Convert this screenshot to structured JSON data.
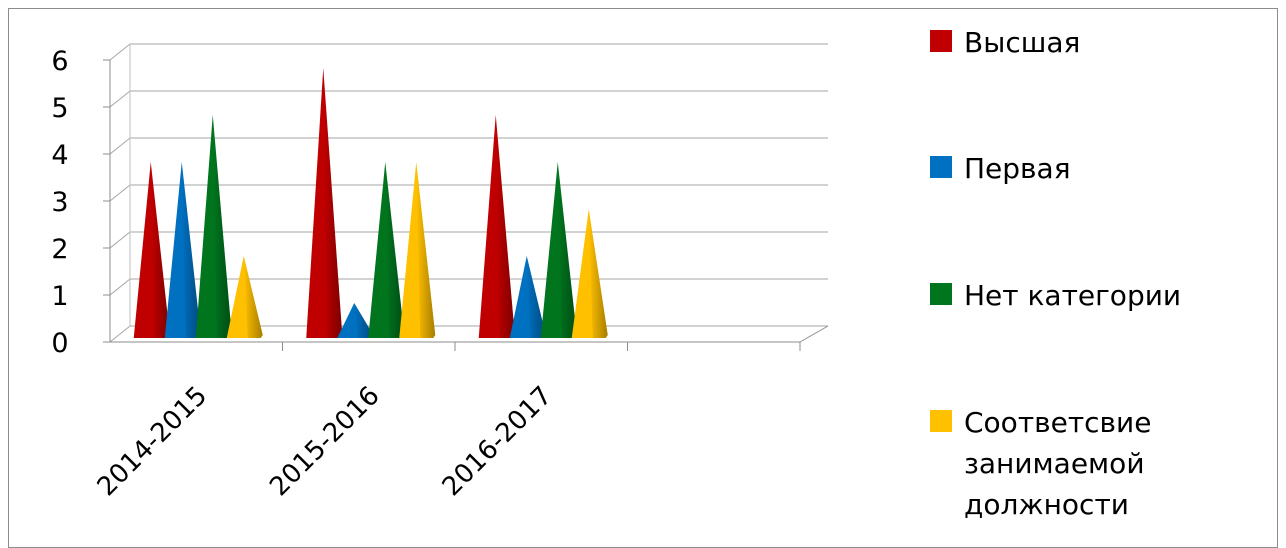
{
  "chart_data": {
    "type": "bar",
    "style": "3d-cone",
    "categories": [
      "2014-2015",
      "2015-2016",
      "2016-2017"
    ],
    "series": [
      {
        "name": "Высшая",
        "values": [
          4,
          6,
          5
        ],
        "color": "#c00000"
      },
      {
        "name": "Первая",
        "values": [
          4,
          1,
          2
        ],
        "color": "#0070c0"
      },
      {
        "name": "Нет категории",
        "values": [
          5,
          4,
          4
        ],
        "color": "#00751e"
      },
      {
        "name": "Соответсвие занимаемой должности",
        "values": [
          2,
          4,
          3
        ],
        "color": "#ffc000"
      }
    ],
    "yticks": [
      "0",
      "1",
      "2",
      "3",
      "4",
      "5",
      "6"
    ],
    "ylim": [
      0,
      6
    ],
    "grid": true,
    "legend_position": "right"
  }
}
